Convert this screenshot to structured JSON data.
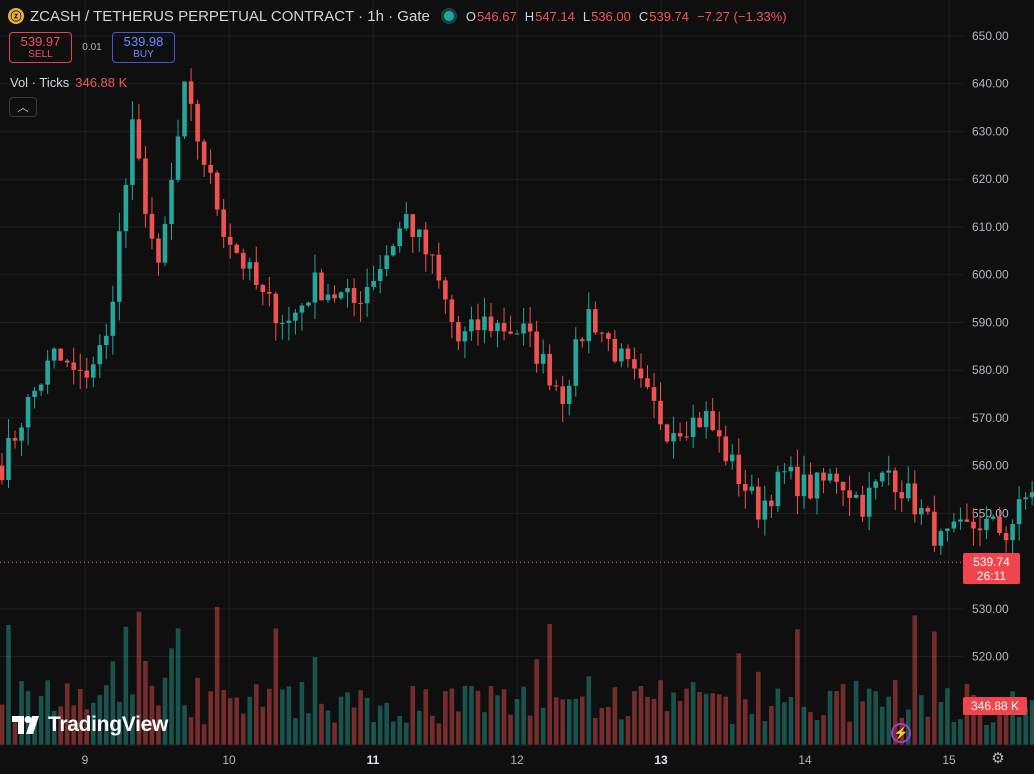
{
  "header": {
    "coin_icon": "zcash-coin-icon",
    "title": "ZCASH / TETHERUS PERPETUAL CONTRACT · 1h · Gate",
    "open_label": "O",
    "open": "546.67",
    "high_label": "H",
    "high": "547.14",
    "low_label": "L",
    "low": "536.00",
    "close_label": "C",
    "close": "539.74",
    "change": "−7.27 (−1.33%)"
  },
  "trade": {
    "sell_price": "539.97",
    "sell_label": "SELL",
    "spread": "0.01",
    "buy_price": "539.98",
    "buy_label": "BUY"
  },
  "volume_legend": {
    "label": "Vol · Ticks",
    "value": "346.88 K"
  },
  "collapse_icon": "chevron-up-icon",
  "logo": {
    "text": "TradingView"
  },
  "last_price_tag": {
    "price": "539.74",
    "countdown": "26:11"
  },
  "volume_tag": "346.88 K",
  "colors": {
    "up": "#26a69a",
    "down": "#ef5350",
    "background": "#0f0f0f",
    "grid": "#1f1f1f",
    "axis_text": "#b2b5be"
  },
  "chart_data": {
    "type": "candlestick",
    "y_axis": {
      "min": 512,
      "max": 652,
      "ticks": [
        520,
        530,
        540,
        550,
        560,
        570,
        580,
        590,
        600,
        610,
        620,
        630,
        640,
        650
      ],
      "tick_labels": [
        "520.00",
        "530.00",
        "540.00",
        "550.00",
        "560.00",
        "570.00",
        "580.00",
        "590.00",
        "600.00",
        "610.00",
        "620.00",
        "630.00",
        "640.00",
        "650.00"
      ]
    },
    "x_axis": {
      "ticks": [
        "9",
        "10",
        "11",
        "12",
        "13",
        "14",
        "15"
      ],
      "bold_ticks": [
        "11",
        "13"
      ]
    },
    "grid": true,
    "last_price": 539.74,
    "anchors": [
      [
        0,
        560
      ],
      [
        4,
        573
      ],
      [
        8,
        583
      ],
      [
        12,
        578
      ],
      [
        16,
        586
      ],
      [
        20,
        630
      ],
      [
        24,
        600
      ],
      [
        28,
        638
      ],
      [
        34,
        610
      ],
      [
        40,
        595
      ],
      [
        44,
        590
      ],
      [
        48,
        598
      ],
      [
        54,
        594
      ],
      [
        58,
        602
      ],
      [
        62,
        612
      ],
      [
        66,
        602
      ],
      [
        70,
        586
      ],
      [
        74,
        590
      ],
      [
        80,
        588
      ],
      [
        86,
        575
      ],
      [
        90,
        592
      ],
      [
        96,
        580
      ],
      [
        102,
        568
      ],
      [
        108,
        570
      ],
      [
        112,
        560
      ],
      [
        116,
        551
      ],
      [
        120,
        558
      ],
      [
        124,
        555
      ],
      [
        128,
        558
      ],
      [
        132,
        552
      ],
      [
        136,
        559
      ],
      [
        140,
        552
      ],
      [
        144,
        544
      ],
      [
        150,
        548
      ],
      [
        154,
        546
      ],
      [
        160,
        560
      ],
      [
        164,
        585
      ],
      [
        166,
        588
      ],
      [
        168,
        578
      ],
      [
        172,
        555
      ],
      [
        176,
        552
      ],
      [
        180,
        550
      ],
      [
        184,
        540
      ],
      [
        188,
        528
      ],
      [
        192,
        537
      ],
      [
        196,
        526
      ],
      [
        200,
        530
      ],
      [
        204,
        525
      ],
      [
        208,
        528
      ],
      [
        212,
        521
      ],
      [
        216,
        519
      ],
      [
        218,
        552
      ],
      [
        220,
        540
      ]
    ],
    "volume": {
      "scale_max": 100,
      "last_value": "346.88 K"
    }
  }
}
